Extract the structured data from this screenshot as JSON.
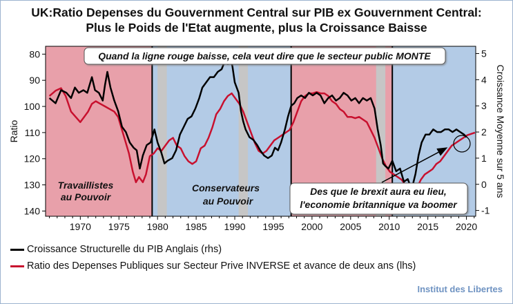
{
  "header": {
    "title_line1": "UK:Ratio Depenses  du Gouvernment Central sur  PIB ex Gouvernment Central:",
    "title_line2": "Plus le Poids de l'Etat augmente, plus la Croissance Baisse"
  },
  "footer": {
    "credit": "Institut des Libertes"
  },
  "colors": {
    "labour": "#e8a0aa",
    "conservative": "#b3cbe6",
    "recession": "#c6c6c6",
    "growth_line": "#000000",
    "ratio_line": "#c8102e",
    "credit": "#6f93c2"
  },
  "chart_data": {
    "type": "line",
    "ylabel": "Ratio",
    "y2label": "Croissance Moyenne sur 5 ans",
    "xlim": [
      1965.5,
      2021.2
    ],
    "ylim": [
      142,
      77
    ],
    "y2lim": [
      -1.222,
      5.278
    ],
    "xticks": [
      1970,
      1975,
      1980,
      1985,
      1990,
      1995,
      2000,
      2005,
      2010,
      2015,
      2020
    ],
    "yticks": [
      80,
      90,
      100,
      110,
      120,
      130,
      140
    ],
    "y2ticks": [
      -1,
      0,
      1,
      2,
      3,
      4,
      5
    ],
    "grid": false,
    "legend_position": "bottom",
    "bands": [
      {
        "type": "government",
        "party": "Labour",
        "start": 1965.5,
        "end": 1979.3
      },
      {
        "type": "government",
        "party": "Conservative",
        "start": 1979.3,
        "end": 1997.3
      },
      {
        "type": "government",
        "party": "Labour",
        "start": 1997.3,
        "end": 2010.4
      },
      {
        "type": "government",
        "party": "Conservative",
        "start": 2010.4,
        "end": 2021.2
      },
      {
        "type": "recession",
        "start": 1980.0,
        "end": 1981.2
      },
      {
        "type": "recession",
        "start": 1990.5,
        "end": 1991.7
      },
      {
        "type": "recession",
        "start": 2008.3,
        "end": 2009.5
      }
    ],
    "annotations": {
      "top_box": "Quand la ligne rouge baisse, cela veut dire que le secteur public MONTE",
      "labour_line1": "Travaillistes",
      "labour_line2": "au Pouvoir",
      "conservative_line1": "Conservateurs",
      "conservative_line2": "au Pouvoir",
      "brexit_line1": "Des que le brexit aura eu lieu,",
      "brexit_line2": "l'economie britannique va boomer"
    },
    "series": [
      {
        "name": "Croissance Structurelle du PIB Anglais (rhs)",
        "axis": "right",
        "color": "#000000",
        "points": [
          [
            1966.0,
            3.3
          ],
          [
            1966.8,
            3.1
          ],
          [
            1967.5,
            3.6
          ],
          [
            1968.2,
            3.5
          ],
          [
            1968.8,
            3.3
          ],
          [
            1969.3,
            3.7
          ],
          [
            1969.8,
            3.5
          ],
          [
            1970.4,
            3.6
          ],
          [
            1970.9,
            3.5
          ],
          [
            1971.5,
            4.1
          ],
          [
            1971.9,
            3.6
          ],
          [
            1972.4,
            3.5
          ],
          [
            1972.9,
            3.2
          ],
          [
            1973.2,
            3.8
          ],
          [
            1973.5,
            4.3
          ],
          [
            1973.9,
            3.7
          ],
          [
            1974.4,
            3.2
          ],
          [
            1974.9,
            2.8
          ],
          [
            1975.4,
            2.2
          ],
          [
            1975.9,
            2.0
          ],
          [
            1976.4,
            1.6
          ],
          [
            1976.9,
            1.4
          ],
          [
            1977.3,
            1.3
          ],
          [
            1977.7,
            0.6
          ],
          [
            1978.1,
            1.1
          ],
          [
            1978.6,
            1.5
          ],
          [
            1979.1,
            1.6
          ],
          [
            1979.6,
            2.1
          ],
          [
            1980.0,
            1.6
          ],
          [
            1980.5,
            1.2
          ],
          [
            1980.9,
            0.8
          ],
          [
            1981.3,
            0.9
          ],
          [
            1981.9,
            1.0
          ],
          [
            1982.4,
            1.3
          ],
          [
            1982.9,
            1.9
          ],
          [
            1983.4,
            2.2
          ],
          [
            1983.9,
            2.5
          ],
          [
            1984.4,
            2.6
          ],
          [
            1984.9,
            2.9
          ],
          [
            1985.4,
            3.3
          ],
          [
            1985.8,
            3.7
          ],
          [
            1986.3,
            3.9
          ],
          [
            1986.8,
            4.1
          ],
          [
            1987.3,
            4.1
          ],
          [
            1987.8,
            4.3
          ],
          [
            1988.3,
            4.4
          ],
          [
            1988.7,
            4.7
          ],
          [
            1989.1,
            4.6
          ],
          [
            1989.4,
            4.9
          ],
          [
            1989.7,
            4.5
          ],
          [
            1990.0,
            3.9
          ],
          [
            1990.5,
            3.5
          ],
          [
            1990.8,
            2.8
          ],
          [
            1991.1,
            2.4
          ],
          [
            1991.4,
            2.1
          ],
          [
            1991.9,
            1.8
          ],
          [
            1992.4,
            1.7
          ],
          [
            1992.9,
            1.5
          ],
          [
            1993.3,
            1.3
          ],
          [
            1993.8,
            1.1
          ],
          [
            1994.3,
            1.0
          ],
          [
            1994.8,
            1.1
          ],
          [
            1995.2,
            1.4
          ],
          [
            1995.6,
            1.3
          ],
          [
            1996.0,
            1.6
          ],
          [
            1996.5,
            2.1
          ],
          [
            1996.9,
            2.6
          ],
          [
            1997.3,
            3.0
          ],
          [
            1997.7,
            3.1
          ],
          [
            1998.1,
            3.3
          ],
          [
            1998.6,
            3.4
          ],
          [
            1999.1,
            3.3
          ],
          [
            1999.6,
            3.5
          ],
          [
            2000.1,
            3.4
          ],
          [
            2000.6,
            3.5
          ],
          [
            2001.1,
            3.4
          ],
          [
            2001.6,
            3.1
          ],
          [
            2002.1,
            3.3
          ],
          [
            2002.6,
            3.4
          ],
          [
            2003.1,
            3.2
          ],
          [
            2003.6,
            3.3
          ],
          [
            2004.1,
            3.5
          ],
          [
            2004.6,
            3.4
          ],
          [
            2005.1,
            3.2
          ],
          [
            2005.6,
            3.3
          ],
          [
            2006.1,
            3.1
          ],
          [
            2006.6,
            3.3
          ],
          [
            2007.1,
            3.2
          ],
          [
            2007.6,
            3.3
          ],
          [
            2008.1,
            2.9
          ],
          [
            2008.5,
            2.1
          ],
          [
            2008.9,
            1.5
          ],
          [
            2009.2,
            0.8
          ],
          [
            2009.5,
            0.7
          ],
          [
            2009.9,
            0.6
          ],
          [
            2010.4,
            0.9
          ],
          [
            2010.9,
            0.5
          ],
          [
            2011.4,
            0.6
          ],
          [
            2011.9,
            0.1
          ],
          [
            2012.4,
            0.2
          ],
          [
            2012.9,
            -0.2
          ],
          [
            2013.4,
            0.4
          ],
          [
            2013.8,
            1.1
          ],
          [
            2014.2,
            1.6
          ],
          [
            2014.7,
            1.9
          ],
          [
            2015.2,
            1.9
          ],
          [
            2015.7,
            2.1
          ],
          [
            2016.2,
            2.0
          ],
          [
            2016.7,
            2.0
          ],
          [
            2017.2,
            2.1
          ],
          [
            2017.7,
            2.1
          ],
          [
            2018.2,
            2.0
          ],
          [
            2018.7,
            2.1
          ],
          [
            2019.2,
            2.0
          ],
          [
            2019.7,
            1.9
          ],
          [
            2020.0,
            1.8
          ]
        ]
      },
      {
        "name": "Ratio des Depenses Publiques sur Secteur Prive INVERSE et avance de deux ans (lhs)",
        "axis": "left",
        "color": "#c8102e",
        "points": [
          [
            1966.0,
            96.0
          ],
          [
            1966.8,
            94.0
          ],
          [
            1967.5,
            93.0
          ],
          [
            1968.1,
            96.0
          ],
          [
            1968.8,
            102.0
          ],
          [
            1969.4,
            104.0
          ],
          [
            1970.0,
            106.0
          ],
          [
            1970.5,
            104.0
          ],
          [
            1971.0,
            102.0
          ],
          [
            1971.5,
            99.0
          ],
          [
            1972.0,
            98.0
          ],
          [
            1972.6,
            99.0
          ],
          [
            1973.2,
            100.0
          ],
          [
            1973.8,
            101.0
          ],
          [
            1974.4,
            102.0
          ],
          [
            1974.9,
            104.0
          ],
          [
            1975.4,
            109.0
          ],
          [
            1975.8,
            113.0
          ],
          [
            1976.3,
            118.0
          ],
          [
            1976.8,
            125.0
          ],
          [
            1977.2,
            129.0
          ],
          [
            1977.6,
            127.0
          ],
          [
            1978.1,
            129.0
          ],
          [
            1978.5,
            126.0
          ],
          [
            1979.0,
            119.0
          ],
          [
            1979.5,
            118.0
          ],
          [
            1980.0,
            116.0
          ],
          [
            1980.5,
            117.0
          ],
          [
            1981.0,
            115.0
          ],
          [
            1981.5,
            113.0
          ],
          [
            1982.0,
            112.0
          ],
          [
            1982.5,
            115.0
          ],
          [
            1983.0,
            116.0
          ],
          [
            1983.5,
            119.0
          ],
          [
            1984.0,
            121.0
          ],
          [
            1984.5,
            122.0
          ],
          [
            1985.0,
            121.0
          ],
          [
            1985.6,
            116.0
          ],
          [
            1986.1,
            115.0
          ],
          [
            1986.6,
            112.0
          ],
          [
            1987.1,
            108.0
          ],
          [
            1987.6,
            103.0
          ],
          [
            1988.1,
            101.0
          ],
          [
            1988.6,
            98.0
          ],
          [
            1989.1,
            96.0
          ],
          [
            1989.6,
            95.0
          ],
          [
            1990.1,
            97.0
          ],
          [
            1990.6,
            99.0
          ],
          [
            1991.1,
            102.0
          ],
          [
            1991.6,
            106.0
          ],
          [
            1992.1,
            110.0
          ],
          [
            1992.6,
            114.0
          ],
          [
            1993.1,
            117.0
          ],
          [
            1993.6,
            118.0
          ],
          [
            1994.1,
            117.0
          ],
          [
            1994.6,
            115.0
          ],
          [
            1995.1,
            113.0
          ],
          [
            1995.6,
            112.0
          ],
          [
            1996.1,
            111.0
          ],
          [
            1996.6,
            110.0
          ],
          [
            1997.1,
            109.0
          ],
          [
            1997.6,
            106.0
          ],
          [
            1998.1,
            102.0
          ],
          [
            1998.6,
            98.0
          ],
          [
            1999.1,
            96.0
          ],
          [
            1999.6,
            95.0
          ],
          [
            2000.1,
            95.0
          ],
          [
            2000.6,
            94.5
          ],
          [
            2001.1,
            95.0
          ],
          [
            2001.6,
            95.0
          ],
          [
            2002.1,
            96.0
          ],
          [
            2002.6,
            98.0
          ],
          [
            2003.1,
            99.0
          ],
          [
            2003.6,
            101.0
          ],
          [
            2004.1,
            102.0
          ],
          [
            2004.6,
            104.0
          ],
          [
            2005.1,
            104.0
          ],
          [
            2005.6,
            104.5
          ],
          [
            2006.1,
            104.0
          ],
          [
            2006.6,
            105.0
          ],
          [
            2007.1,
            106.0
          ],
          [
            2007.6,
            109.0
          ],
          [
            2008.1,
            112.0
          ],
          [
            2008.6,
            116.0
          ],
          [
            2009.1,
            120.0
          ],
          [
            2009.6,
            123.0
          ],
          [
            2010.1,
            125.0
          ],
          [
            2010.6,
            126.0
          ],
          [
            2011.1,
            127.0
          ],
          [
            2011.6,
            128.0
          ],
          [
            2012.1,
            130.0
          ],
          [
            2012.6,
            131.0
          ],
          [
            2013.1,
            132.0
          ],
          [
            2013.6,
            131.0
          ],
          [
            2014.1,
            128.0
          ],
          [
            2014.6,
            126.0
          ],
          [
            2015.1,
            125.0
          ],
          [
            2015.6,
            124.0
          ],
          [
            2016.1,
            122.0
          ],
          [
            2016.6,
            121.0
          ],
          [
            2017.1,
            119.0
          ],
          [
            2017.6,
            117.0
          ],
          [
            2018.1,
            115.0
          ],
          [
            2018.6,
            114.0
          ],
          [
            2019.1,
            113.0
          ],
          [
            2019.6,
            112.0
          ],
          [
            2020.1,
            111.0
          ],
          [
            2020.6,
            110.5
          ],
          [
            2021.1,
            110.0
          ]
        ]
      }
    ]
  }
}
